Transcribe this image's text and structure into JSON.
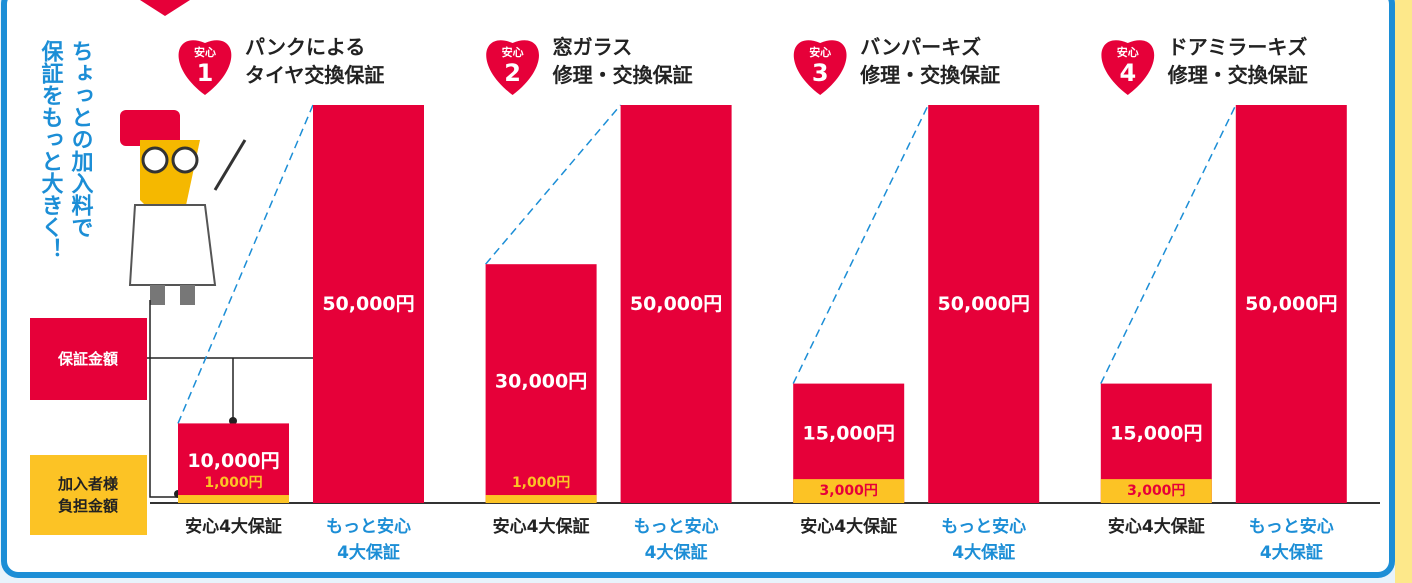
{
  "side_text": "ちょっとの加入料で\n保証をもっと大きく！",
  "legend": {
    "guarantee": "保証金額",
    "burden": "加入者様\n負担金額"
  },
  "chart_data": [
    {
      "type": "bar",
      "badge": "安心",
      "number": "1",
      "title": "パンクによる\nタイヤ交換保証",
      "categories": [
        "安心4大保証",
        "もっと安心\n4大保証"
      ],
      "ylim": [
        0,
        50000
      ],
      "series": [
        {
          "name": "保証金額",
          "color": "#e60039",
          "values": [
            10000,
            50000
          ],
          "value_labels": [
            "10,000円",
            "50,000円"
          ]
        },
        {
          "name": "加入者様負担金額",
          "color": "#fcc325",
          "values": [
            1000,
            null
          ],
          "value_labels": [
            "1,000円",
            null
          ]
        }
      ]
    },
    {
      "type": "bar",
      "badge": "安心",
      "number": "2",
      "title": "窓ガラス\n修理・交換保証",
      "categories": [
        "安心4大保証",
        "もっと安心\n4大保証"
      ],
      "ylim": [
        0,
        50000
      ],
      "series": [
        {
          "name": "保証金額",
          "color": "#e60039",
          "values": [
            30000,
            50000
          ],
          "value_labels": [
            "30,000円",
            "50,000円"
          ]
        },
        {
          "name": "加入者様負担金額",
          "color": "#fcc325",
          "values": [
            1000,
            null
          ],
          "value_labels": [
            "1,000円",
            null
          ]
        }
      ]
    },
    {
      "type": "bar",
      "badge": "安心",
      "number": "3",
      "title": "バンパーキズ\n修理・交換保証",
      "categories": [
        "安心4大保証",
        "もっと安心\n4大保証"
      ],
      "ylim": [
        0,
        50000
      ],
      "series": [
        {
          "name": "保証金額",
          "color": "#e60039",
          "values": [
            15000,
            50000
          ],
          "value_labels": [
            "15,000円",
            "50,000円"
          ]
        },
        {
          "name": "加入者様負担金額",
          "color": "#fcc325",
          "values": [
            3000,
            null
          ],
          "value_labels": [
            "3,000円",
            null
          ]
        }
      ]
    },
    {
      "type": "bar",
      "badge": "安心",
      "number": "4",
      "title": "ドアミラーキズ\n修理・交換保証",
      "categories": [
        "安心4大保証",
        "もっと安心\n4大保証"
      ],
      "ylim": [
        0,
        50000
      ],
      "series": [
        {
          "name": "保証金額",
          "color": "#e60039",
          "values": [
            15000,
            50000
          ],
          "value_labels": [
            "15,000円",
            "50,000円"
          ]
        },
        {
          "name": "加入者様負担金額",
          "color": "#fcc325",
          "values": [
            3000,
            null
          ],
          "value_labels": [
            "3,000円",
            null
          ]
        }
      ]
    }
  ]
}
